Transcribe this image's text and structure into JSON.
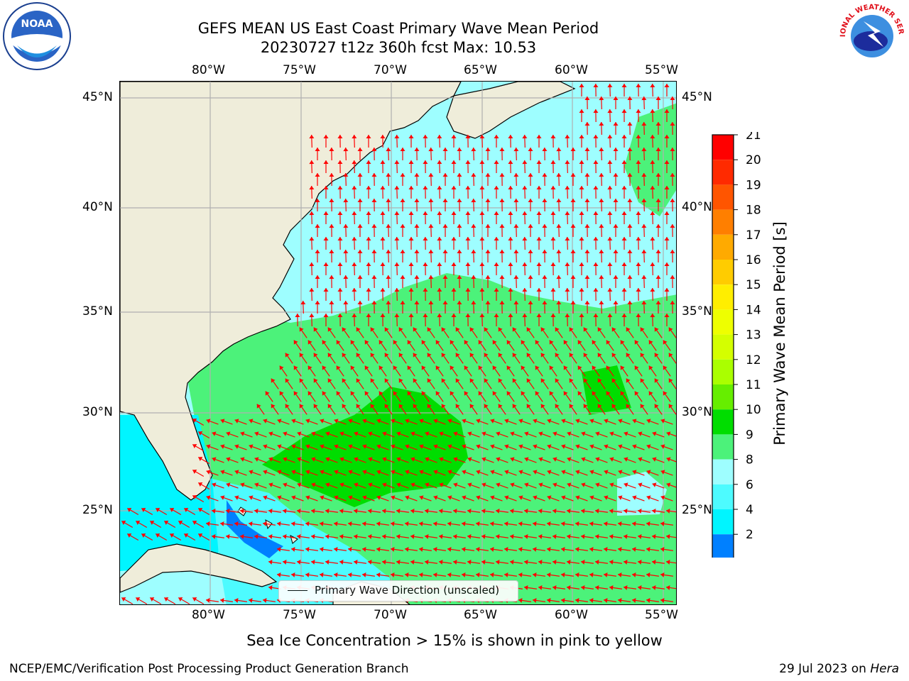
{
  "title": {
    "line1": "GEFS MEAN US East Coast Primary Wave Mean Period",
    "line2": "20230727 t12z 360h fcst   Max: 10.53"
  },
  "map": {
    "lon_ticks": [
      "80°W",
      "75°W",
      "70°W",
      "65°W",
      "60°W",
      "55°W"
    ],
    "lat_ticks": [
      "45°N",
      "40°N",
      "35°N",
      "30°N",
      "25°N"
    ],
    "land_color": "#efedda",
    "arrow_color": "#ff0000",
    "grid_color": "#b0b0b0"
  },
  "legend": {
    "label": "Primary Wave Direction (unscaled)"
  },
  "colorbar": {
    "label": "Primary Wave Mean Period [s]",
    "ticks": [
      "21",
      "20",
      "19",
      "18",
      "17",
      "16",
      "15",
      "14",
      "13",
      "12",
      "11",
      "10",
      "9",
      "8",
      "6",
      "4",
      "2"
    ],
    "colors": [
      "#ff0000",
      "#ff2a00",
      "#ff5500",
      "#ff7f00",
      "#ffaa00",
      "#ffcc00",
      "#ffee00",
      "#eeff00",
      "#d4ff00",
      "#aaff00",
      "#66ee00",
      "#00dd00",
      "#4cf27a",
      "#9efeff",
      "#4dfbff",
      "#00f5ff",
      "#0080ff"
    ],
    "extend_color": "#0000ff"
  },
  "footer": {
    "note": "Sea Ice Concentration > 15% is shown in pink to yellow",
    "credit": "NCEP/EMC/Verification Post Processing Product Generation Branch",
    "date": "29 Jul 2023 on",
    "host": "Hera"
  },
  "logos": {
    "left": {
      "name": "noaa-logo",
      "text": "NOAA"
    },
    "right": {
      "name": "nws-logo",
      "text": "NATIONAL WEATHER SERVICE"
    }
  }
}
